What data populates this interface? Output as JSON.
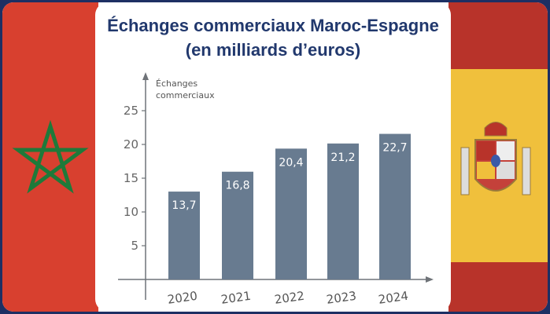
{
  "title_line1": "Échanges commerciaux Maroc-Espagne",
  "title_line2": "(en milliards d’euros)",
  "chart_data": {
    "type": "bar",
    "title": "Échanges commerciaux Maroc-Espagne (en milliards d’euros)",
    "ylabel": "Échanges commerciaux",
    "ylabel_lines": [
      "Échanges",
      "commerciaux"
    ],
    "xlabel": "",
    "categories": [
      "2020",
      "2021",
      "2022",
      "2023",
      "2024"
    ],
    "values": [
      13.7,
      16.8,
      20.4,
      21.2,
      22.7
    ],
    "data_labels": [
      "13,7",
      "16,8",
      "20,4",
      "21,2",
      "22,7"
    ],
    "yticks": [
      5,
      10,
      15,
      20,
      25
    ],
    "ylim": [
      0,
      28
    ],
    "grid": false,
    "bar_color": "#687b90"
  },
  "colors": {
    "title": "#21386d",
    "morocco_red": "#d8402f",
    "morocco_star": "#1e7a3a",
    "spain_red": "#b8332a",
    "spain_yellow": "#f0c03c",
    "frame": "#1d2f63"
  },
  "icons": {
    "left": "morocco-flag",
    "right": "spain-flag"
  }
}
